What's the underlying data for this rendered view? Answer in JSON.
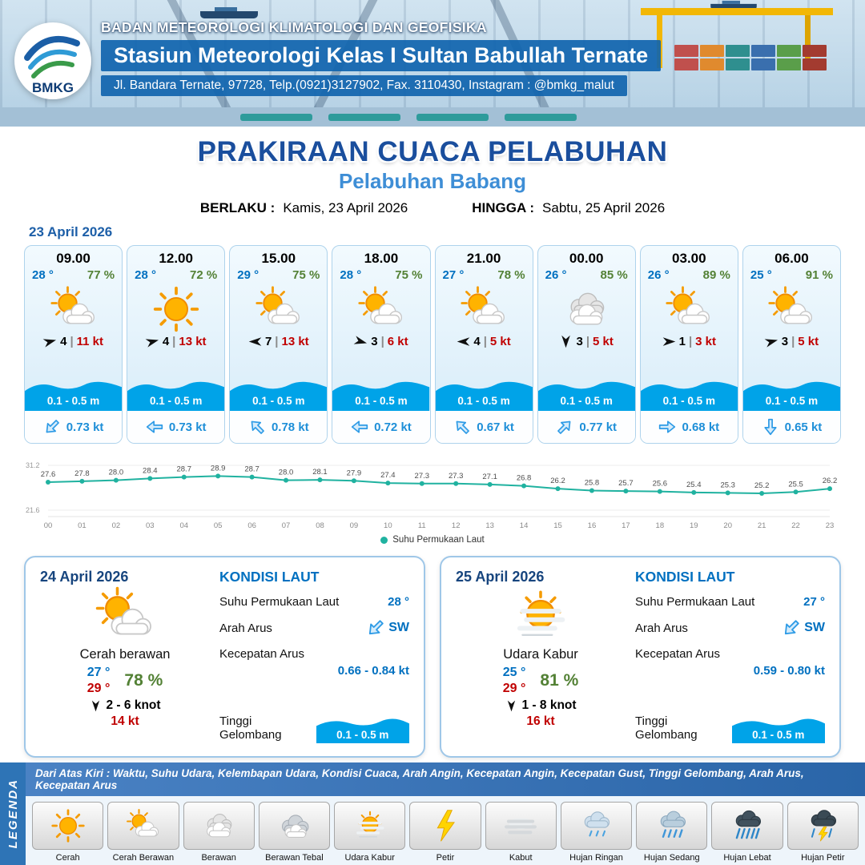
{
  "header": {
    "logo": "BMKG",
    "org": "BADAN METEOROLOGI KLIMATOLOGI DAN GEOFISIKA",
    "station": "Stasiun Meteorologi Kelas I Sultan Babullah Ternate",
    "address": "Jl. Bandara Ternate, 97728, Telp.(0921)3127902, Fax. 3110430, Instagram : @bmkg_malut"
  },
  "title": {
    "main": "PRAKIRAAN CUACA PELABUHAN",
    "subtitle": "Pelabuhan Babang",
    "berlaku_label": "BERLAKU :",
    "berlaku_value": "Kamis, 23 April 2026",
    "hingga_label": "HINGGA :",
    "hingga_value": "Sabtu, 25 April 2026"
  },
  "hourly": {
    "date": "23 April 2026",
    "sep": "|",
    "cards": [
      {
        "time": "09.00",
        "temp": "28 °",
        "humidity": "77 %",
        "icon": "cerah-berawan",
        "wind_speed": "4",
        "wind_gust": "11 kt",
        "wind_rot": -15,
        "wave": "0.1 - 0.5 m",
        "current": "0.73 kt",
        "current_rot": 135
      },
      {
        "time": "12.00",
        "temp": "28 °",
        "humidity": "72 %",
        "icon": "cerah",
        "wind_speed": "4",
        "wind_gust": "13 kt",
        "wind_rot": -15,
        "wave": "0.1 - 0.5 m",
        "current": "0.73 kt",
        "current_rot": 180
      },
      {
        "time": "15.00",
        "temp": "29 °",
        "humidity": "75 %",
        "icon": "cerah-berawan",
        "wind_speed": "7",
        "wind_gust": "13 kt",
        "wind_rot": 180,
        "wave": "0.1 - 0.5 m",
        "current": "0.78 kt",
        "current_rot": 225
      },
      {
        "time": "18.00",
        "temp": "28 °",
        "humidity": "75 %",
        "icon": "cerah-berawan",
        "wind_speed": "3",
        "wind_gust": "6 kt",
        "wind_rot": 15,
        "wave": "0.1 - 0.5 m",
        "current": "0.72 kt",
        "current_rot": 180
      },
      {
        "time": "21.00",
        "temp": "27 °",
        "humidity": "78 %",
        "icon": "cerah-berawan",
        "wind_speed": "4",
        "wind_gust": "5 kt",
        "wind_rot": 180,
        "wave": "0.1 - 0.5 m",
        "current": "0.67 kt",
        "current_rot": 225
      },
      {
        "time": "00.00",
        "temp": "26 °",
        "humidity": "85 %",
        "icon": "berawan",
        "wind_speed": "3",
        "wind_gust": "5 kt",
        "wind_rot": 90,
        "wave": "0.1 - 0.5 m",
        "current": "0.77 kt",
        "current_rot": 315
      },
      {
        "time": "03.00",
        "temp": "26 °",
        "humidity": "89 %",
        "icon": "cerah-berawan",
        "wind_speed": "1",
        "wind_gust": "3 kt",
        "wind_rot": 0,
        "wave": "0.1 - 0.5 m",
        "current": "0.68 kt",
        "current_rot": 0
      },
      {
        "time": "06.00",
        "temp": "25 °",
        "humidity": "91 %",
        "icon": "cerah-berawan",
        "wind_speed": "3",
        "wind_gust": "5 kt",
        "wind_rot": -15,
        "wave": "0.1 - 0.5 m",
        "current": "0.65 kt",
        "current_rot": 90
      }
    ]
  },
  "chart_data": {
    "type": "line",
    "legend": "Suhu Permukaan Laut",
    "x": [
      "00",
      "01",
      "02",
      "03",
      "04",
      "05",
      "06",
      "07",
      "08",
      "09",
      "10",
      "11",
      "12",
      "13",
      "14",
      "15",
      "16",
      "17",
      "18",
      "19",
      "20",
      "21",
      "22",
      "23"
    ],
    "values": [
      27.6,
      27.8,
      28.0,
      28.4,
      28.7,
      28.9,
      28.7,
      28.0,
      28.1,
      27.9,
      27.4,
      27.3,
      27.3,
      27.1,
      26.8,
      26.2,
      25.8,
      25.7,
      25.6,
      25.4,
      25.3,
      25.2,
      25.5,
      26.2
    ],
    "ylim": [
      21.6,
      31.2
    ],
    "y_axis_labels": [
      "31.2",
      "21.6"
    ],
    "line_color": "#20b2a0",
    "grid": false,
    "legend_position": "bottom"
  },
  "sea_labels": {
    "title": "KONDISI LAUT",
    "sst": "Suhu Permukaan Laut",
    "arah": "Arah Arus",
    "kecepatan": "Kecepatan Arus",
    "tinggi": "Tinggi Gelombang"
  },
  "daily": [
    {
      "date": "24 April 2026",
      "icon": "cerah-berawan",
      "condition": "Cerah berawan",
      "temp_min": "27 °",
      "temp_max": "29 °",
      "humidity": "78 %",
      "wind": "2  - 6 knot",
      "gust": "14 kt",
      "wind_rot": 90,
      "sst": "28 °",
      "current_dir": "SW",
      "current_rot": 135,
      "current_speed": "0.66  - 0.84 kt",
      "wave": "0.1 - 0.5 m"
    },
    {
      "date": "25 April 2026",
      "icon": "udara-kabur",
      "condition": "Udara Kabur",
      "temp_min": "25 °",
      "temp_max": "29 °",
      "humidity": "81 %",
      "wind": "1  - 8 knot",
      "gust": "16 kt",
      "wind_rot": 90,
      "sst": "27 °",
      "current_dir": "SW",
      "current_rot": 135,
      "current_speed": "0.59  - 0.80 kt",
      "wave": "0.1 - 0.5 m"
    }
  ],
  "legend": {
    "vertical": "LEGENDA",
    "description": "Dari Atas Kiri : Waktu, Suhu Udara, Kelembapan Udara, Kondisi Cuaca, Arah Angin, Kecepatan Angin, Kecepatan Gust, Tinggi Gelombang, Arah Arus, Kecepatan Arus",
    "items": [
      {
        "label": "Cerah",
        "icon": "cerah"
      },
      {
        "label": "Cerah Berawan",
        "icon": "cerah-berawan"
      },
      {
        "label": "Berawan",
        "icon": "berawan"
      },
      {
        "label": "Berawan Tebal",
        "icon": "berawan-tebal"
      },
      {
        "label": "Udara Kabur",
        "icon": "udara-kabur"
      },
      {
        "label": "Petir",
        "icon": "petir"
      },
      {
        "label": "Kabut",
        "icon": "kabut"
      },
      {
        "label": "Hujan Ringan",
        "icon": "hujan-ringan"
      },
      {
        "label": "Hujan Sedang",
        "icon": "hujan-sedang"
      },
      {
        "label": "Hujan Lebat",
        "icon": "hujan-lebat"
      },
      {
        "label": "Hujan Petir",
        "icon": "hujan-petir"
      }
    ]
  }
}
